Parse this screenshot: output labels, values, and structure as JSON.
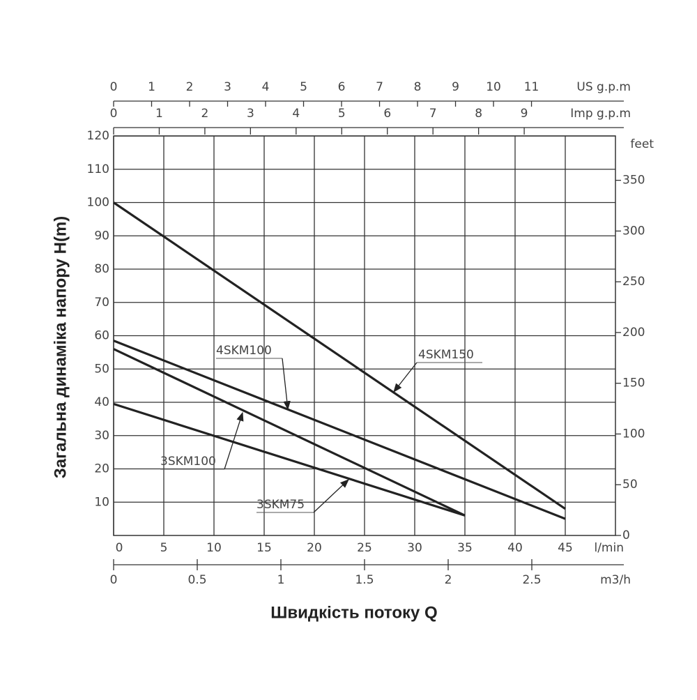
{
  "chart_data": {
    "type": "line",
    "x_label": "Швидкість потоку Q",
    "y_label": "Загальна динаміка напору H(m)",
    "x_unit": "l/min",
    "xlim": [
      0,
      50
    ],
    "xticks": [
      0,
      5,
      10,
      15,
      20,
      25,
      30,
      35,
      40,
      45
    ],
    "ylim": [
      0,
      120
    ],
    "yticks": [
      10,
      20,
      30,
      40,
      50,
      60,
      70,
      80,
      90,
      100,
      110,
      120
    ],
    "y2_unit": "feet",
    "y2lim": [
      0,
      393.7
    ],
    "y2ticks": [
      0,
      50,
      100,
      150,
      200,
      250,
      300,
      350
    ],
    "grid": true,
    "us_gpm_axis": {
      "unit": "US g.p.m",
      "lim": [
        0,
        13.21
      ],
      "ticks": [
        0,
        1,
        2,
        3,
        4,
        5,
        6,
        7,
        8,
        9,
        10,
        11
      ]
    },
    "imp_gpm_axis": {
      "unit": "Imp g.p.m",
      "lim": [
        0,
        11
      ],
      "ticks": [
        0,
        1,
        2,
        3,
        4,
        5,
        6,
        7,
        8,
        9
      ]
    },
    "m3h_axis": {
      "unit": "m3/h",
      "lim": [
        0,
        3
      ],
      "ticks": [
        0,
        {
          "value": 0.5,
          "label": "0.5"
        },
        1,
        {
          "value": 1.5,
          "label": "1.5"
        },
        2,
        {
          "value": 2.5,
          "label": "2.5"
        }
      ]
    },
    "series": [
      {
        "name": "4SKM150",
        "color": "#222222",
        "x": [
          0,
          45
        ],
        "values": [
          100,
          8
        ]
      },
      {
        "name": "4SKM100",
        "color": "#222222",
        "x": [
          0,
          45
        ],
        "values": [
          58.5,
          5
        ]
      },
      {
        "name": "3SKM100",
        "color": "#222222",
        "x": [
          0,
          35
        ],
        "values": [
          56,
          6
        ]
      },
      {
        "name": "3SKM75",
        "color": "#222222",
        "x": [
          0,
          35
        ],
        "values": [
          39.5,
          6
        ]
      }
    ]
  }
}
